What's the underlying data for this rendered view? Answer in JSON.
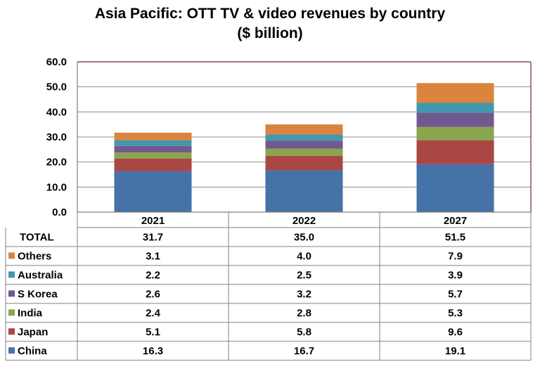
{
  "title_line1": "Asia Pacific: OTT TV & video revenues by country",
  "title_line2": "($ billion)",
  "chart_data": {
    "type": "bar",
    "stacked": true,
    "title": "Asia Pacific: OTT TV & video revenues by country ($ billion)",
    "categories": [
      "2021",
      "2022",
      "2027"
    ],
    "ylim": [
      0,
      60
    ],
    "yticks": [
      "0.0",
      "10.0",
      "20.0",
      "30.0",
      "40.0",
      "50.0",
      "60.0"
    ],
    "grid": true,
    "legend": "data table",
    "total": {
      "label": "TOTAL",
      "values": [
        "31.7",
        "35.0",
        "51.5"
      ]
    },
    "series": [
      {
        "name": "China",
        "color": "#4572A7",
        "values": [
          16.3,
          16.7,
          19.1
        ]
      },
      {
        "name": "Japan",
        "color": "#AA4643",
        "values": [
          5.1,
          5.8,
          9.6
        ]
      },
      {
        "name": "India",
        "color": "#89A54E",
        "values": [
          2.4,
          2.8,
          5.3
        ]
      },
      {
        "name": "S Korea",
        "color": "#71588F",
        "values": [
          2.6,
          3.2,
          5.7
        ]
      },
      {
        "name": "Australia",
        "color": "#4198AF",
        "values": [
          2.2,
          2.5,
          3.9
        ]
      },
      {
        "name": "Others",
        "color": "#DB843D",
        "values": [
          3.1,
          4.0,
          7.9
        ]
      }
    ],
    "table_rows": [
      {
        "name": "Others",
        "values": [
          "3.1",
          "4.0",
          "7.9"
        ]
      },
      {
        "name": "Australia",
        "values": [
          "2.2",
          "2.5",
          "3.9"
        ]
      },
      {
        "name": "S Korea",
        "values": [
          "2.6",
          "3.2",
          "5.7"
        ]
      },
      {
        "name": "India",
        "values": [
          "2.4",
          "2.8",
          "5.3"
        ]
      },
      {
        "name": "Japan",
        "values": [
          "5.1",
          "5.8",
          "9.6"
        ]
      },
      {
        "name": "China",
        "values": [
          "16.3",
          "16.7",
          "19.1"
        ]
      }
    ]
  }
}
